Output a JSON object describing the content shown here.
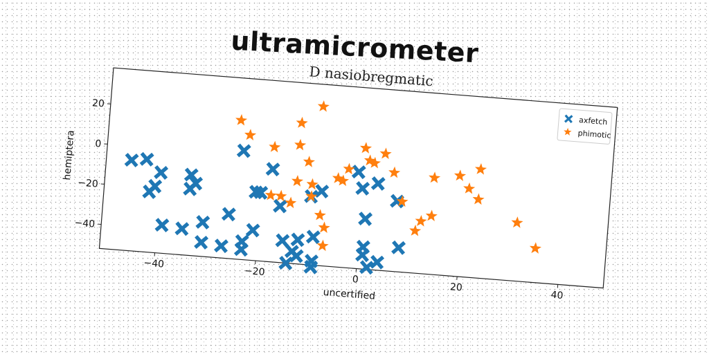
{
  "page": {
    "title": "ultramicrometer"
  },
  "chart_data": {
    "type": "scatter",
    "title": "D nasiobregmatic",
    "xlabel": "uncertified",
    "ylabel": "hemiptera",
    "xlim": [
      -51,
      49
    ],
    "ylim": [
      -52,
      38
    ],
    "xticks": [
      -40,
      -20,
      0,
      20,
      40
    ],
    "yticks": [
      20,
      0,
      -20,
      -40
    ],
    "grid": false,
    "legend_position": "top-right",
    "series": [
      {
        "name": "axfetch",
        "marker": "x",
        "color": "#1f77b4",
        "points": [
          [
            -46,
            -7
          ],
          [
            -43,
            -6
          ],
          [
            -40,
            -12
          ],
          [
            -41,
            -19
          ],
          [
            -42,
            -22
          ],
          [
            -39,
            -38
          ],
          [
            -35,
            -39
          ],
          [
            -34,
            -12
          ],
          [
            -33,
            -16
          ],
          [
            -34,
            -19
          ],
          [
            -31,
            -35
          ],
          [
            -31,
            -45
          ],
          [
            -27,
            -46
          ],
          [
            -26,
            -30
          ],
          [
            -23,
            -43
          ],
          [
            -23,
            -47
          ],
          [
            -21,
            -37
          ],
          [
            -24,
            2
          ],
          [
            -21,
            -18
          ],
          [
            -20,
            -18
          ],
          [
            -18,
            -6
          ],
          [
            -16,
            -24
          ],
          [
            -15,
            -41
          ],
          [
            -12,
            -40
          ],
          [
            -13,
            -46
          ],
          [
            -12,
            -48
          ],
          [
            -14,
            -52
          ],
          [
            -9,
            -50
          ],
          [
            -9,
            -53
          ],
          [
            -9,
            -38
          ],
          [
            -10,
            -18
          ],
          [
            -8,
            -15
          ],
          [
            -1,
            -4
          ],
          [
            0,
            -12
          ],
          [
            1,
            -27
          ],
          [
            3,
            -9
          ],
          [
            1,
            -41
          ],
          [
            1,
            -45
          ],
          [
            2,
            -51
          ],
          [
            4,
            -48
          ],
          [
            7,
            -17
          ],
          [
            8,
            -40
          ]
        ]
      },
      {
        "name": "phimotic",
        "marker": "star",
        "color": "#ff7f0e",
        "points": [
          [
            -25,
            17
          ],
          [
            -23,
            10
          ],
          [
            -18,
            5
          ],
          [
            -13,
            18
          ],
          [
            -13,
            7
          ],
          [
            -11,
            -1
          ],
          [
            -13,
            -11
          ],
          [
            -9,
            27
          ],
          [
            -10,
            -12
          ],
          [
            -10,
            -18
          ],
          [
            -14,
            -22
          ],
          [
            -8,
            -27
          ],
          [
            -7,
            -33
          ],
          [
            -7,
            -42
          ],
          [
            -4,
            -9
          ],
          [
            -3,
            -3
          ],
          [
            -5,
            -8
          ],
          [
            0,
            8
          ],
          [
            1,
            2
          ],
          [
            2,
            1
          ],
          [
            4,
            6
          ],
          [
            6,
            -3
          ],
          [
            8,
            -17
          ],
          [
            11,
            -31
          ],
          [
            12,
            -26
          ],
          [
            14,
            -23
          ],
          [
            14,
            -4
          ],
          [
            19,
            -2
          ],
          [
            21,
            -8
          ],
          [
            23,
            -13
          ],
          [
            23,
            2
          ],
          [
            31,
            -23
          ],
          [
            35,
            -35
          ],
          [
            -18,
            -19
          ],
          [
            -16,
            -19
          ]
        ]
      }
    ]
  }
}
